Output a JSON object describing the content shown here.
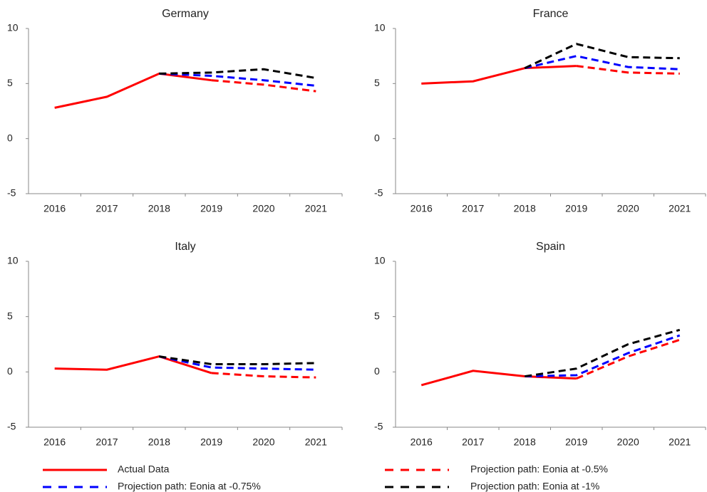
{
  "chart_data": [
    {
      "type": "line",
      "title": "Germany",
      "categories": [
        "2016",
        "2017",
        "2018",
        "2019",
        "2020",
        "2021"
      ],
      "ylim": [
        -5,
        10
      ],
      "yticks": [
        -5,
        0,
        5,
        10
      ],
      "series": [
        {
          "name": "Actual Data",
          "color": "#ff0000",
          "dashed": false,
          "values": [
            2.8,
            3.8,
            5.9,
            5.3,
            null,
            null
          ]
        },
        {
          "name": "Projection path: Eonia at -0.5%",
          "color": "#ff0000",
          "dashed": true,
          "values": [
            null,
            null,
            null,
            5.3,
            4.9,
            4.3
          ]
        },
        {
          "name": "Projection path: Eonia at -0.75%",
          "color": "#0000ff",
          "dashed": true,
          "values": [
            null,
            null,
            5.9,
            5.7,
            5.3,
            4.8
          ]
        },
        {
          "name": "Projection path: Eonia at -1%",
          "color": "#000000",
          "dashed": true,
          "values": [
            null,
            null,
            5.9,
            6.0,
            6.3,
            5.5
          ]
        }
      ]
    },
    {
      "type": "line",
      "title": "France",
      "categories": [
        "2016",
        "2017",
        "2018",
        "2019",
        "2020",
        "2021"
      ],
      "ylim": [
        -5,
        10
      ],
      "yticks": [
        -5,
        0,
        5,
        10
      ],
      "series": [
        {
          "name": "Actual Data",
          "color": "#ff0000",
          "dashed": false,
          "values": [
            5.0,
            5.2,
            6.4,
            6.6,
            null,
            null
          ]
        },
        {
          "name": "Projection path: Eonia at -0.5%",
          "color": "#ff0000",
          "dashed": true,
          "values": [
            null,
            null,
            null,
            6.6,
            6.0,
            5.9
          ]
        },
        {
          "name": "Projection path: Eonia at -0.75%",
          "color": "#0000ff",
          "dashed": true,
          "values": [
            null,
            null,
            6.4,
            7.5,
            6.5,
            6.3
          ]
        },
        {
          "name": "Projection path: Eonia at -1%",
          "color": "#000000",
          "dashed": true,
          "values": [
            null,
            null,
            6.4,
            8.6,
            7.4,
            7.3
          ]
        }
      ]
    },
    {
      "type": "line",
      "title": "Italy",
      "categories": [
        "2016",
        "2017",
        "2018",
        "2019",
        "2020",
        "2021"
      ],
      "ylim": [
        -5,
        10
      ],
      "yticks": [
        -5,
        0,
        5,
        10
      ],
      "series": [
        {
          "name": "Actual Data",
          "color": "#ff0000",
          "dashed": false,
          "values": [
            0.3,
            0.2,
            1.4,
            -0.1,
            null,
            null
          ]
        },
        {
          "name": "Projection path: Eonia at -0.5%",
          "color": "#ff0000",
          "dashed": true,
          "values": [
            null,
            null,
            null,
            -0.1,
            -0.4,
            -0.5
          ]
        },
        {
          "name": "Projection path: Eonia at -0.75%",
          "color": "#0000ff",
          "dashed": true,
          "values": [
            null,
            null,
            1.4,
            0.4,
            0.3,
            0.2
          ]
        },
        {
          "name": "Projection path: Eonia at -1%",
          "color": "#000000",
          "dashed": true,
          "values": [
            null,
            null,
            1.4,
            0.7,
            0.7,
            0.8
          ]
        }
      ]
    },
    {
      "type": "line",
      "title": "Spain",
      "categories": [
        "2016",
        "2017",
        "2018",
        "2019",
        "2020",
        "2021"
      ],
      "ylim": [
        -5,
        10
      ],
      "yticks": [
        -5,
        0,
        5,
        10
      ],
      "series": [
        {
          "name": "Actual Data",
          "color": "#ff0000",
          "dashed": false,
          "values": [
            -1.2,
            0.1,
            -0.4,
            -0.6,
            null,
            null
          ]
        },
        {
          "name": "Projection path: Eonia at -0.5%",
          "color": "#ff0000",
          "dashed": true,
          "values": [
            null,
            null,
            null,
            -0.6,
            1.4,
            2.9
          ]
        },
        {
          "name": "Projection path: Eonia at -0.75%",
          "color": "#0000ff",
          "dashed": true,
          "values": [
            null,
            null,
            -0.4,
            -0.3,
            1.7,
            3.3
          ]
        },
        {
          "name": "Projection path: Eonia at -1%",
          "color": "#000000",
          "dashed": true,
          "values": [
            null,
            null,
            -0.4,
            0.3,
            2.5,
            3.8
          ]
        }
      ]
    }
  ]
}
